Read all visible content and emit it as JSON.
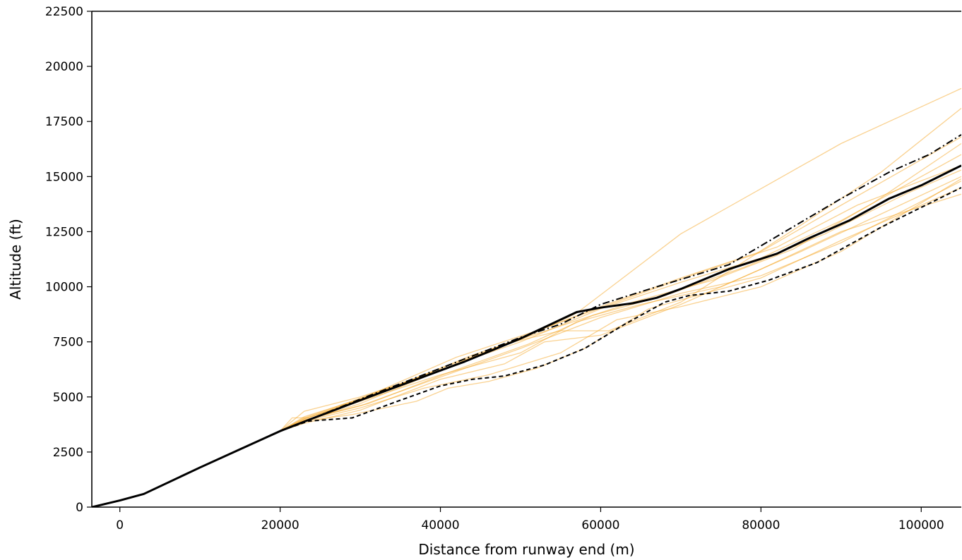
{
  "chart_data": {
    "type": "line",
    "title": "",
    "xlabel": "Distance from runway end (m)",
    "ylabel": "Altitude (ft)",
    "xlim": [
      -3500,
      105000
    ],
    "ylim": [
      0,
      22500
    ],
    "xticks": [
      0,
      20000,
      40000,
      60000,
      80000,
      100000
    ],
    "xtick_labels": [
      "0",
      "20000",
      "40000",
      "60000",
      "80000",
      "100000"
    ],
    "yticks": [
      0,
      2500,
      5000,
      7500,
      10000,
      12500,
      15000,
      17500,
      20000,
      22500
    ],
    "ytick_labels": [
      "0",
      "2500",
      "5000",
      "7500",
      "10000",
      "12500",
      "15000",
      "17500",
      "20000",
      "22500"
    ],
    "grid": false,
    "legend": "none",
    "colors": {
      "traces": "#f5a623",
      "stats": "#000000"
    },
    "common_segment": [
      [
        -3500,
        0
      ],
      [
        0,
        300
      ],
      [
        3000,
        600
      ],
      [
        10000,
        1800
      ],
      [
        20000,
        3450
      ]
    ],
    "traces": [
      [
        [
          21500,
          4050
        ],
        [
          23500,
          4050
        ],
        [
          30000,
          4900
        ],
        [
          40000,
          6300
        ],
        [
          50000,
          7600
        ],
        [
          57000,
          8800
        ],
        [
          70000,
          12400
        ],
        [
          90000,
          16500
        ],
        [
          105000,
          19000
        ]
      ],
      [
        [
          23000,
          3900
        ],
        [
          30000,
          4700
        ],
        [
          40000,
          6200
        ],
        [
          48000,
          7400
        ],
        [
          55000,
          8000
        ],
        [
          61000,
          8000
        ],
        [
          70000,
          9300
        ],
        [
          85000,
          12800
        ],
        [
          95000,
          15200
        ],
        [
          105000,
          18100
        ]
      ],
      [
        [
          23000,
          4350
        ],
        [
          30000,
          5000
        ],
        [
          40000,
          6200
        ],
        [
          50000,
          7700
        ],
        [
          60000,
          9100
        ],
        [
          70000,
          10400
        ],
        [
          80000,
          11600
        ],
        [
          90000,
          13700
        ],
        [
          105000,
          16800
        ]
      ],
      [
        [
          23000,
          3800
        ],
        [
          30000,
          4400
        ],
        [
          40000,
          5800
        ],
        [
          48000,
          6500
        ],
        [
          53000,
          7500
        ],
        [
          60000,
          7800
        ],
        [
          70000,
          9200
        ],
        [
          80000,
          10800
        ],
        [
          90000,
          12500
        ],
        [
          105000,
          14200
        ]
      ],
      [
        [
          23000,
          3900
        ],
        [
          29000,
          4200
        ],
        [
          37000,
          4800
        ],
        [
          41000,
          5400
        ],
        [
          46000,
          5700
        ],
        [
          52000,
          6300
        ],
        [
          58000,
          7200
        ],
        [
          66000,
          9000
        ],
        [
          72000,
          9600
        ],
        [
          80000,
          10400
        ],
        [
          90000,
          12100
        ],
        [
          105000,
          14500
        ]
      ],
      [
        [
          23000,
          4000
        ],
        [
          30000,
          4800
        ],
        [
          40000,
          6000
        ],
        [
          50000,
          7000
        ],
        [
          57000,
          8400
        ],
        [
          65000,
          9200
        ],
        [
          75000,
          10000
        ],
        [
          85000,
          11600
        ],
        [
          95000,
          13300
        ],
        [
          105000,
          15000
        ]
      ],
      [
        [
          23000,
          4100
        ],
        [
          30000,
          4900
        ],
        [
          42000,
          6800
        ],
        [
          52000,
          8000
        ],
        [
          62000,
          9300
        ],
        [
          72000,
          10600
        ],
        [
          82000,
          11800
        ],
        [
          92000,
          13700
        ],
        [
          105000,
          15500
        ]
      ],
      [
        [
          23000,
          3950
        ],
        [
          30000,
          4600
        ],
        [
          40000,
          5900
        ],
        [
          50000,
          7200
        ],
        [
          60000,
          8600
        ],
        [
          70000,
          9700
        ],
        [
          80000,
          10500
        ],
        [
          90000,
          12000
        ],
        [
          105000,
          14800
        ]
      ],
      [
        [
          23000,
          4050
        ],
        [
          32000,
          5200
        ],
        [
          42000,
          6500
        ],
        [
          50000,
          7500
        ],
        [
          60000,
          9000
        ],
        [
          70000,
          10200
        ],
        [
          80000,
          11300
        ],
        [
          90000,
          13000
        ],
        [
          105000,
          16000
        ]
      ],
      [
        [
          23000,
          3900
        ],
        [
          30000,
          4500
        ],
        [
          38000,
          5400
        ],
        [
          46000,
          6000
        ],
        [
          55000,
          7000
        ],
        [
          62000,
          8500
        ],
        [
          70000,
          9100
        ],
        [
          80000,
          10000
        ],
        [
          90000,
          11600
        ],
        [
          105000,
          14900
        ]
      ],
      [
        [
          23000,
          4000
        ],
        [
          34000,
          5400
        ],
        [
          44000,
          6900
        ],
        [
          54000,
          8100
        ],
        [
          64000,
          9300
        ],
        [
          74000,
          10300
        ],
        [
          84000,
          11700
        ],
        [
          94000,
          13800
        ],
        [
          105000,
          16500
        ]
      ],
      [
        [
          23000,
          3950
        ],
        [
          31000,
          4700
        ],
        [
          41000,
          6100
        ],
        [
          51000,
          7400
        ],
        [
          59000,
          8700
        ],
        [
          68000,
          9600
        ],
        [
          78000,
          10900
        ],
        [
          88000,
          12400
        ],
        [
          98000,
          14200
        ],
        [
          105000,
          15300
        ]
      ]
    ],
    "series": [
      {
        "name": "",
        "style": "solid",
        "points": [
          [
            -3500,
            0
          ],
          [
            0,
            300
          ],
          [
            3000,
            600
          ],
          [
            10000,
            1800
          ],
          [
            20000,
            3450
          ],
          [
            23500,
            3950
          ],
          [
            30000,
            4850
          ],
          [
            40000,
            6200
          ],
          [
            43000,
            6600
          ],
          [
            50000,
            7650
          ],
          [
            57000,
            8850
          ],
          [
            60000,
            9050
          ],
          [
            64000,
            9250
          ],
          [
            67000,
            9500
          ],
          [
            70000,
            9900
          ],
          [
            76000,
            10800
          ],
          [
            82000,
            11500
          ],
          [
            86000,
            12200
          ],
          [
            91000,
            13000
          ],
          [
            96000,
            14000
          ],
          [
            100000,
            14600
          ],
          [
            105000,
            15500
          ]
        ]
      },
      {
        "name": "",
        "style": "dashed",
        "points": [
          [
            -3500,
            0
          ],
          [
            0,
            300
          ],
          [
            3000,
            600
          ],
          [
            10000,
            1800
          ],
          [
            20000,
            3450
          ],
          [
            23500,
            3900
          ],
          [
            29000,
            4050
          ],
          [
            35000,
            4850
          ],
          [
            40000,
            5500
          ],
          [
            44000,
            5800
          ],
          [
            48000,
            5950
          ],
          [
            53000,
            6450
          ],
          [
            58000,
            7200
          ],
          [
            63000,
            8300
          ],
          [
            68000,
            9300
          ],
          [
            71000,
            9600
          ],
          [
            76000,
            9800
          ],
          [
            81000,
            10300
          ],
          [
            87000,
            11100
          ],
          [
            95000,
            12700
          ],
          [
            105000,
            14500
          ]
        ]
      },
      {
        "name": "",
        "style": "dashdot",
        "points": [
          [
            -3500,
            0
          ],
          [
            0,
            300
          ],
          [
            3000,
            600
          ],
          [
            10000,
            1800
          ],
          [
            20000,
            3450
          ],
          [
            23500,
            3950
          ],
          [
            30000,
            4900
          ],
          [
            40000,
            6300
          ],
          [
            50000,
            7700
          ],
          [
            55000,
            8300
          ],
          [
            60000,
            9200
          ],
          [
            67000,
            10000
          ],
          [
            76000,
            11000
          ],
          [
            83000,
            12500
          ],
          [
            90000,
            14000
          ],
          [
            96000,
            15200
          ],
          [
            101000,
            16000
          ],
          [
            105000,
            16900
          ]
        ]
      }
    ]
  }
}
